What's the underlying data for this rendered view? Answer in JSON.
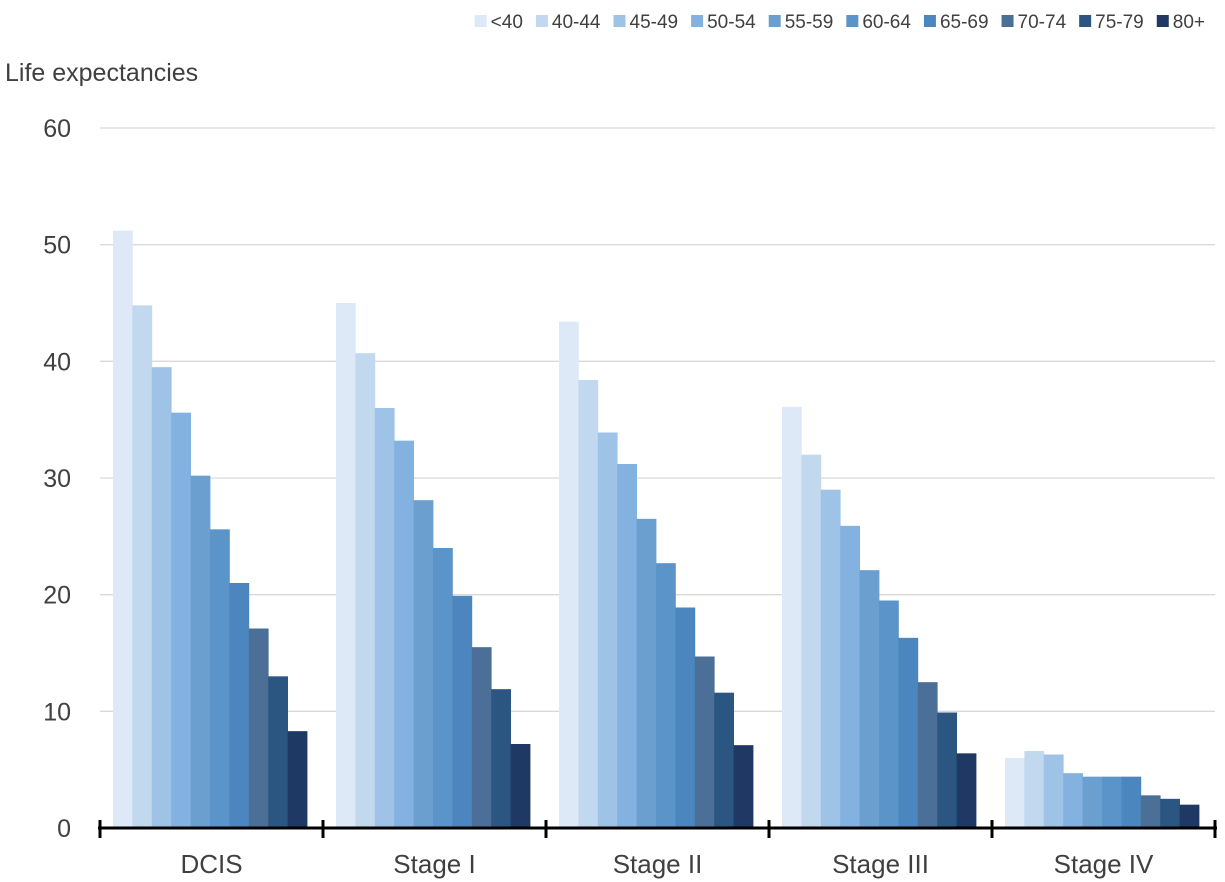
{
  "chart_data": {
    "type": "bar",
    "title": "",
    "xlabel": "",
    "ylabel": "Life expectancies",
    "ylim": [
      0,
      60
    ],
    "yticks": [
      0,
      10,
      20,
      30,
      40,
      50,
      60
    ],
    "grid": true,
    "legend_position": "top-right",
    "categories": [
      "DCIS",
      "Stage I",
      "Stage II",
      "Stage III",
      "Stage IV"
    ],
    "series": [
      {
        "name": "<40",
        "color": "#dde9f6",
        "values": [
          51.2,
          45.0,
          43.4,
          36.1,
          6.0
        ]
      },
      {
        "name": "40-44",
        "color": "#c1d8ef",
        "values": [
          44.8,
          40.7,
          38.4,
          32.0,
          6.6
        ]
      },
      {
        "name": "45-49",
        "color": "#9fc3e7",
        "values": [
          39.5,
          36.0,
          33.9,
          29.0,
          6.3
        ]
      },
      {
        "name": "50-54",
        "color": "#84b2e0",
        "values": [
          35.6,
          33.2,
          31.2,
          25.9,
          4.7
        ]
      },
      {
        "name": "55-59",
        "color": "#6a9fd0",
        "values": [
          30.2,
          28.1,
          26.5,
          22.1,
          4.4
        ]
      },
      {
        "name": "60-64",
        "color": "#5b94c9",
        "values": [
          25.6,
          24.0,
          22.7,
          19.5,
          4.4
        ]
      },
      {
        "name": "65-69",
        "color": "#4c86be",
        "values": [
          21.0,
          19.9,
          18.9,
          16.3,
          4.4
        ]
      },
      {
        "name": "70-74",
        "color": "#4b6f97",
        "values": [
          17.1,
          15.5,
          14.7,
          12.5,
          2.8
        ]
      },
      {
        "name": "75-79",
        "color": "#2c5682",
        "values": [
          13.0,
          11.9,
          11.6,
          9.9,
          2.5
        ]
      },
      {
        "name": "80+",
        "color": "#203864",
        "values": [
          8.3,
          7.2,
          7.1,
          6.4,
          2.0
        ]
      }
    ]
  }
}
